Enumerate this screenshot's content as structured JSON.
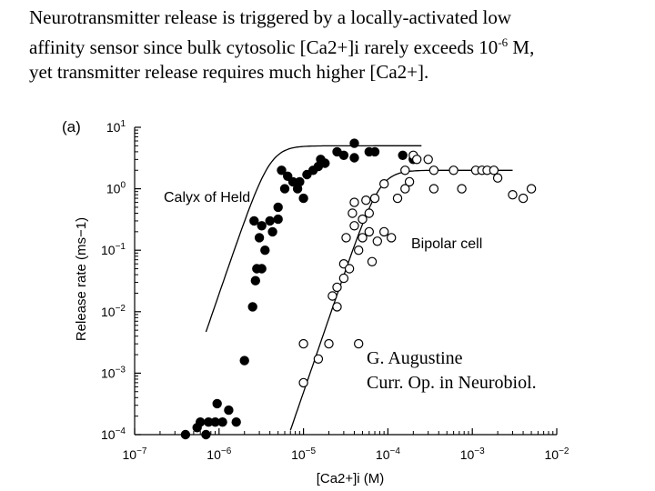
{
  "slide": {
    "line1": "Neurotransmitter release is triggered by a locally-activated low",
    "line2_a": "affinity sensor since bulk cytosolic [Ca2+]i rarely exceeds 10",
    "line2_sup": "-6",
    "line2_b": " M,",
    "line3": "yet transmitter release requires much higher [Ca2+]."
  },
  "chart_data": {
    "type": "scatter",
    "panel_label": "(a)",
    "xscale": "log",
    "yscale": "log",
    "xlim": [
      1e-07,
      0.01
    ],
    "ylim": [
      0.0001,
      10
    ],
    "xlabel": "[Ca2+]i (M)",
    "ylabel": "Release rate (ms−1)",
    "x_tick_labels": [
      "10−7",
      "10−6",
      "10−5",
      "10−4",
      "10−3",
      "10−2"
    ],
    "y_tick_labels": [
      "10−4",
      "10−3",
      "10−2",
      "10−1",
      "100",
      "101"
    ],
    "annotation": [
      "G. Augustine",
      "Curr. Op. in Neurobiol."
    ],
    "series": [
      {
        "name": "Calyx of Held",
        "marker": "filled-circle",
        "color": "#000000",
        "points": [
          [
            4e-07,
            0.0001
          ],
          [
            5.5e-07,
            0.00013
          ],
          [
            6e-07,
            0.00016
          ],
          [
            7e-07,
            0.0001
          ],
          [
            7.5e-07,
            0.00016
          ],
          [
            9e-07,
            0.00016
          ],
          [
            9.5e-07,
            0.00032
          ],
          [
            1.1e-06,
            0.00016
          ],
          [
            1.3e-06,
            0.00025
          ],
          [
            1.6e-06,
            0.00016
          ],
          [
            2e-06,
            0.0016
          ],
          [
            2.5e-06,
            0.012
          ],
          [
            2.7e-06,
            0.032
          ],
          [
            2.8e-06,
            0.05
          ],
          [
            3.2e-06,
            0.05
          ],
          [
            3e-06,
            0.16
          ],
          [
            3.5e-06,
            0.1
          ],
          [
            2.6e-06,
            0.3
          ],
          [
            3.2e-06,
            0.25
          ],
          [
            4e-06,
            0.3
          ],
          [
            4.3e-06,
            0.2
          ],
          [
            5e-06,
            0.32
          ],
          [
            5e-06,
            0.5
          ],
          [
            6e-06,
            1.0
          ],
          [
            5.5e-06,
            2.0
          ],
          [
            6.5e-06,
            1.6
          ],
          [
            7.5e-06,
            1.3
          ],
          [
            8.5e-06,
            1.0
          ],
          [
            9e-06,
            1.3
          ],
          [
            1e-05,
            0.7
          ],
          [
            1.1e-05,
            1.7
          ],
          [
            1.3e-05,
            2.0
          ],
          [
            1.5e-05,
            2.3
          ],
          [
            1.6e-05,
            3.0
          ],
          [
            1.8e-05,
            2.6
          ],
          [
            2.5e-05,
            4.0
          ],
          [
            3e-05,
            3.5
          ],
          [
            4e-05,
            5.5
          ],
          [
            6e-05,
            4.0
          ],
          [
            7e-05,
            4.0
          ],
          [
            0.00015,
            3.5
          ],
          [
            0.0002,
            3.0
          ],
          [
            4e-05,
            3.2
          ]
        ]
      },
      {
        "name": "Bipolar cell",
        "marker": "open-circle",
        "color": "#000000",
        "points": [
          [
            1e-05,
            0.0007
          ],
          [
            1e-05,
            0.003
          ],
          [
            1.5e-05,
            0.0017
          ],
          [
            2e-05,
            0.003
          ],
          [
            2.2e-05,
            0.018
          ],
          [
            2.5e-05,
            0.012
          ],
          [
            2.5e-05,
            0.025
          ],
          [
            3e-05,
            0.035
          ],
          [
            3e-05,
            0.06
          ],
          [
            3.5e-05,
            0.05
          ],
          [
            3.2e-05,
            0.16
          ],
          [
            4e-05,
            0.25
          ],
          [
            3.8e-05,
            0.4
          ],
          [
            4e-05,
            0.6
          ],
          [
            4.5e-05,
            0.003
          ],
          [
            4.5e-05,
            0.1
          ],
          [
            5e-05,
            0.16
          ],
          [
            5e-05,
            0.32
          ],
          [
            5.5e-05,
            0.65
          ],
          [
            6e-05,
            0.4
          ],
          [
            6e-05,
            0.2
          ],
          [
            6.5e-05,
            0.065
          ],
          [
            7e-05,
            0.7
          ],
          [
            7.5e-05,
            0.14
          ],
          [
            9e-05,
            1.2
          ],
          [
            9e-05,
            0.2
          ],
          [
            0.00011,
            0.16
          ],
          [
            0.00013,
            0.7
          ],
          [
            0.00016,
            2.0
          ],
          [
            0.0002,
            3.5
          ],
          [
            0.00022,
            3.0
          ],
          [
            0.0003,
            3.0
          ],
          [
            0.00035,
            2.0
          ],
          [
            0.00035,
            1.0
          ],
          [
            0.0006,
            2.0
          ],
          [
            0.00075,
            1.0
          ],
          [
            0.0011,
            2.0
          ],
          [
            0.0013,
            2.0
          ],
          [
            0.0015,
            2.0
          ],
          [
            0.0018,
            2.0
          ],
          [
            0.002,
            1.5
          ],
          [
            0.003,
            0.8
          ],
          [
            0.004,
            0.7
          ],
          [
            0.005,
            1.0
          ],
          [
            0.00016,
            1.0
          ],
          [
            0.00018,
            1.3
          ]
        ]
      }
    ],
    "fits": [
      {
        "name": "Calyx of Held",
        "max": 5,
        "k_half": 4e-06,
        "hill": 4,
        "x_from": 7e-07,
        "x_to": 0.00025
      },
      {
        "name": "Bipolar cell",
        "max": 2,
        "k_half": 8e-05,
        "hill": 4,
        "x_from": 7e-06,
        "x_to": 0.003
      }
    ]
  }
}
